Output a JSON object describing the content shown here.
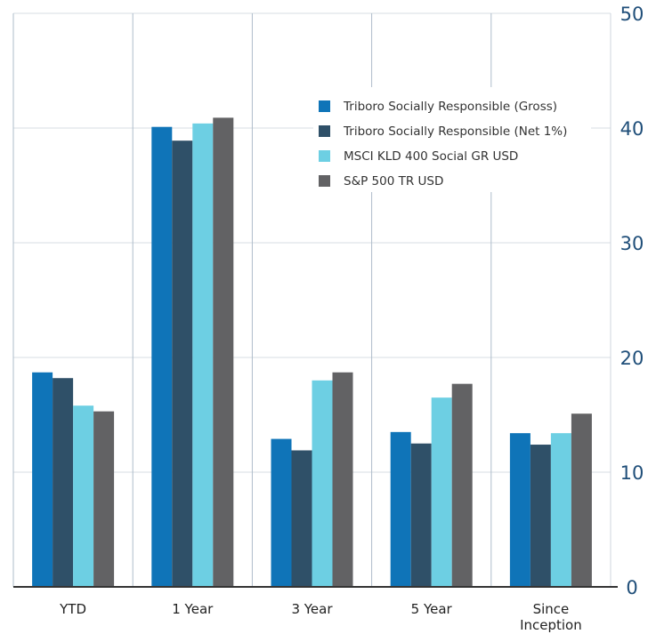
{
  "chart_data": {
    "type": "bar",
    "title": "",
    "xlabel": "",
    "ylabel": "",
    "categories": [
      "YTD",
      "1 Year",
      "3 Year",
      "5 Year",
      "Since\nInception"
    ],
    "ylim": [
      0,
      50
    ],
    "yticks": [
      0,
      10,
      20,
      30,
      40,
      50
    ],
    "y_axis_side": "right",
    "grid": true,
    "legend_position": "top-right",
    "series": [
      {
        "name": "Triboro Socially Responsible (Gross)",
        "color": "#0f74b8",
        "values": [
          18.7,
          40.1,
          12.9,
          13.5,
          13.4
        ]
      },
      {
        "name": "Triboro Socially Responsible (Net 1%)",
        "color": "#2f5068",
        "values": [
          18.2,
          38.9,
          11.9,
          12.5,
          12.4
        ]
      },
      {
        "name": "MSCI KLD 400 Social GR USD",
        "color": "#6dcfe3",
        "values": [
          15.8,
          40.4,
          18.0,
          16.5,
          13.4
        ]
      },
      {
        "name": "S&P 500 TR USD",
        "color": "#626264",
        "values": [
          15.3,
          40.9,
          18.7,
          17.7,
          15.1
        ]
      }
    ]
  }
}
